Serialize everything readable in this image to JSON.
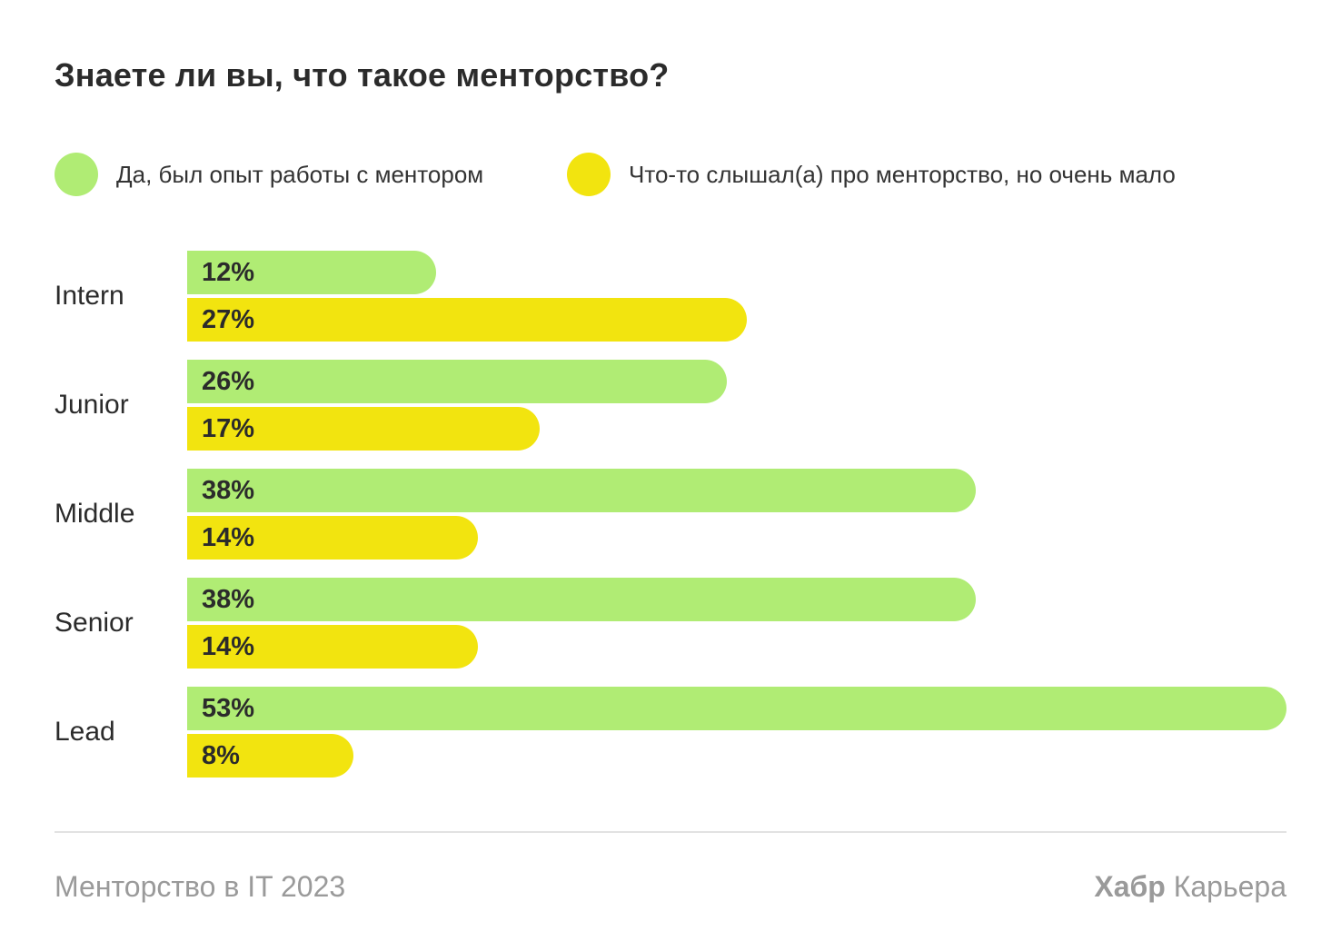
{
  "colors": {
    "series1": "#b0ec74",
    "series2": "#f2e40f"
  },
  "chart_data": {
    "type": "bar",
    "orientation": "horizontal",
    "title": "Знаете ли вы, что такое менторство?",
    "categories": [
      "Intern",
      "Junior",
      "Middle",
      "Senior",
      "Lead"
    ],
    "series": [
      {
        "name": "Да, был опыт работы с ментором",
        "values": [
          12,
          26,
          38,
          38,
          53
        ]
      },
      {
        "name": "Что-то слышал(а) про менторство, но очень мало",
        "values": [
          27,
          17,
          14,
          14,
          8
        ]
      }
    ],
    "value_suffix": "%",
    "xlim": [
      0,
      53
    ],
    "legend": "top-left",
    "grid": false
  },
  "footer": {
    "source": "Менторство в IT 2023",
    "brand": "Хабр",
    "brand_suffix": "Карьера"
  }
}
